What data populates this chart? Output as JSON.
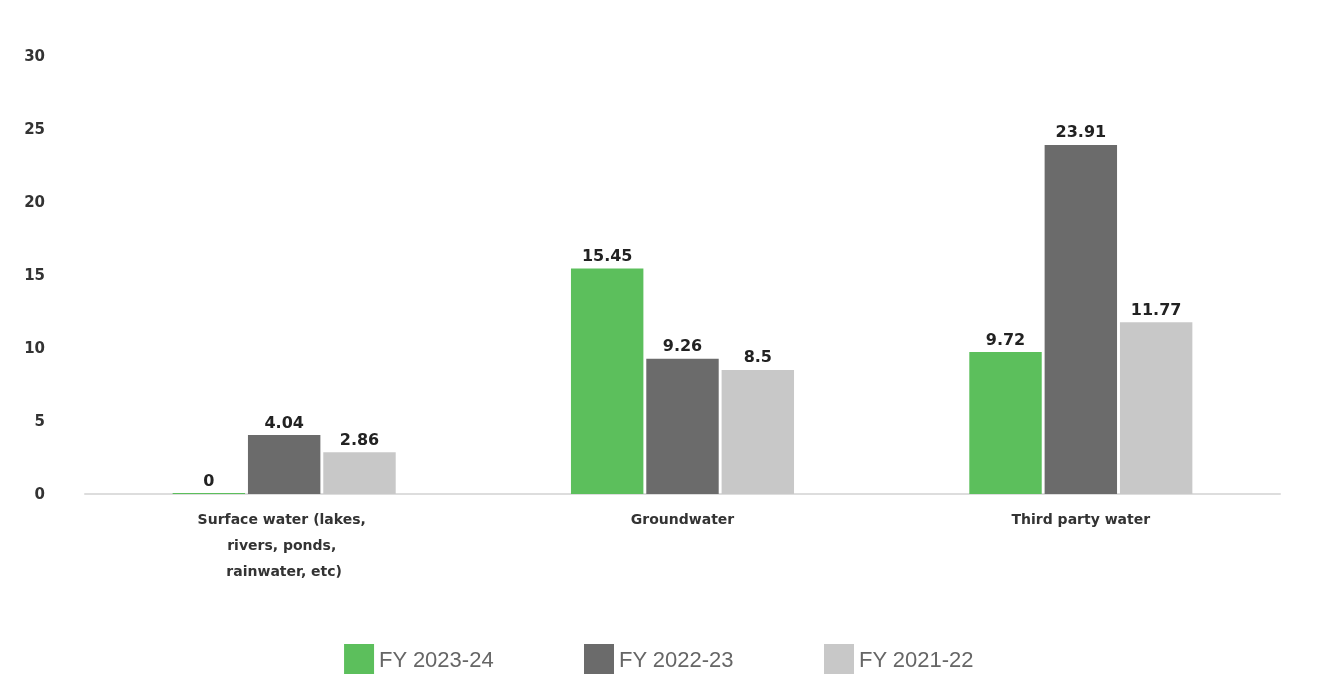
{
  "chart_data": {
    "type": "bar",
    "categories": [
      "Surface water (lakes, rivers, ponds, rainwater, etc)",
      "Groundwater",
      "Third party water"
    ],
    "series": [
      {
        "name": "FY 2023-24",
        "color": "#5cbf5c",
        "values": [
          0,
          15.45,
          9.72
        ]
      },
      {
        "name": "FY 2022-23",
        "color": "#6b6b6b",
        "values": [
          4.04,
          9.26,
          23.91
        ]
      },
      {
        "name": "FY 2021-22",
        "color": "#c8c8c8",
        "values": [
          2.86,
          8.5,
          11.77
        ]
      }
    ],
    "ylim": [
      0,
      30
    ],
    "yticks": [
      0,
      5,
      10,
      15,
      20,
      25,
      30
    ],
    "grid": false,
    "legend": "bottom",
    "data_labels": true
  }
}
